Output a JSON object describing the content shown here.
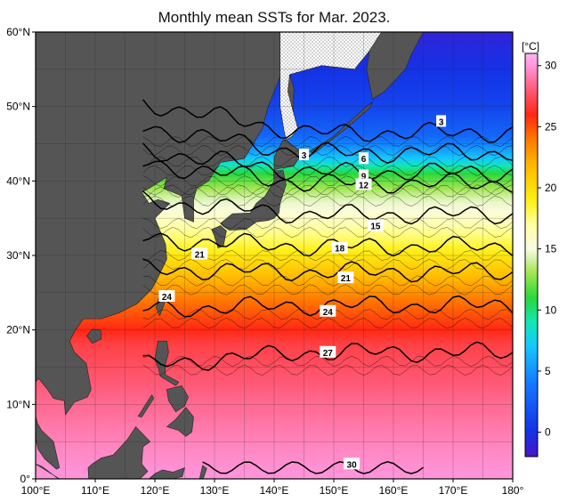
{
  "title": "Monthly mean SSTs for Mar. 2023.",
  "map": {
    "lon_range": [
      100,
      180
    ],
    "lat_range": [
      0,
      60
    ],
    "x_ticks": [
      "100°E",
      "110°E",
      "120°E",
      "130°E",
      "140°E",
      "150°E",
      "160°E",
      "170°E",
      "180°"
    ],
    "y_ticks": [
      "0°",
      "10°N",
      "20°N",
      "30°N",
      "40°N",
      "50°N",
      "60°N"
    ],
    "land_color": "#555555",
    "sea_ice_color": "#ffffff",
    "contour_labels": [
      {
        "text": "3",
        "lon": 145,
        "lat": 43.5
      },
      {
        "text": "3",
        "lon": 168,
        "lat": 48
      },
      {
        "text": "6",
        "lon": 155,
        "lat": 43
      },
      {
        "text": "9",
        "lon": 155,
        "lat": 40.7
      },
      {
        "text": "12",
        "lon": 155,
        "lat": 39.5
      },
      {
        "text": "15",
        "lon": 157,
        "lat": 34
      },
      {
        "text": "18",
        "lon": 151,
        "lat": 31
      },
      {
        "text": "21",
        "lon": 127.5,
        "lat": 30.2
      },
      {
        "text": "21",
        "lon": 152,
        "lat": 27
      },
      {
        "text": "24",
        "lon": 122,
        "lat": 24.5
      },
      {
        "text": "24",
        "lon": 149,
        "lat": 22.5
      },
      {
        "text": "27",
        "lon": 149,
        "lat": 17
      },
      {
        "text": "30",
        "lon": 153,
        "lat": 2
      }
    ]
  },
  "colorbar": {
    "unit": "[°C]",
    "ticks": [
      "0",
      "5",
      "10",
      "15",
      "20",
      "25",
      "30"
    ],
    "min": -2,
    "max": 31,
    "stops": [
      {
        "v": -2,
        "c": "#4b14c8"
      },
      {
        "v": 0,
        "c": "#1432e6"
      },
      {
        "v": 4,
        "c": "#1478ff"
      },
      {
        "v": 7,
        "c": "#14c8ff"
      },
      {
        "v": 9,
        "c": "#14e6b4"
      },
      {
        "v": 11,
        "c": "#28d83c"
      },
      {
        "v": 13,
        "c": "#a0e650"
      },
      {
        "v": 15,
        "c": "#fafae6"
      },
      {
        "v": 17,
        "c": "#ffffa0"
      },
      {
        "v": 19,
        "c": "#fff014"
      },
      {
        "v": 22,
        "c": "#ffb400"
      },
      {
        "v": 24,
        "c": "#ff7800"
      },
      {
        "v": 26,
        "c": "#ff2814"
      },
      {
        "v": 28,
        "c": "#ff5a78"
      },
      {
        "v": 30,
        "c": "#ff96dc"
      },
      {
        "v": 31,
        "c": "#ffb4f0"
      }
    ]
  }
}
